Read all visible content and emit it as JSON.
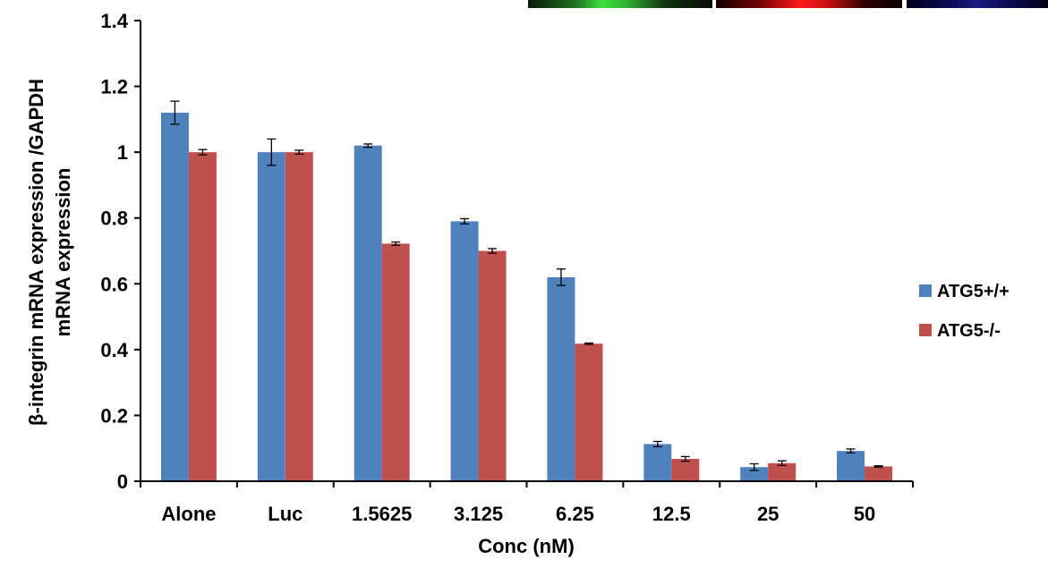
{
  "chart_data": {
    "type": "bar",
    "title": "",
    "xlabel": "Conc (nM)",
    "ylabel_lines": [
      "β-integrin mRNA expression /GAPDH",
      "mRNA expression"
    ],
    "categories": [
      "Alone",
      "Luc",
      "1.5625",
      "3.125",
      "6.25",
      "12.5",
      "25",
      "50"
    ],
    "ylim": [
      0,
      1.4
    ],
    "yticks": [
      "0",
      "0.2",
      "0.4",
      "0.6",
      "0.8",
      "1",
      "1.2",
      "1.4"
    ],
    "ytick_values": [
      0,
      0.2,
      0.4,
      0.6,
      0.8,
      1.0,
      1.2,
      1.4
    ],
    "grid": false,
    "legend_position": "right",
    "series": [
      {
        "name": "ATG5+/+",
        "color": "#4F81BD",
        "values": [
          1.12,
          1.0,
          1.02,
          0.79,
          0.62,
          0.113,
          0.043,
          0.092
        ],
        "errors": [
          0.035,
          0.04,
          0.005,
          0.008,
          0.025,
          0.008,
          0.01,
          0.006
        ]
      },
      {
        "name": "ATG5-/-",
        "color": "#C0504D",
        "values": [
          1.0,
          1.0,
          0.722,
          0.7,
          0.418,
          0.068,
          0.055,
          0.045
        ],
        "errors": [
          0.008,
          0.006,
          0.005,
          0.007,
          0.002,
          0.007,
          0.007,
          0.002
        ]
      }
    ]
  }
}
